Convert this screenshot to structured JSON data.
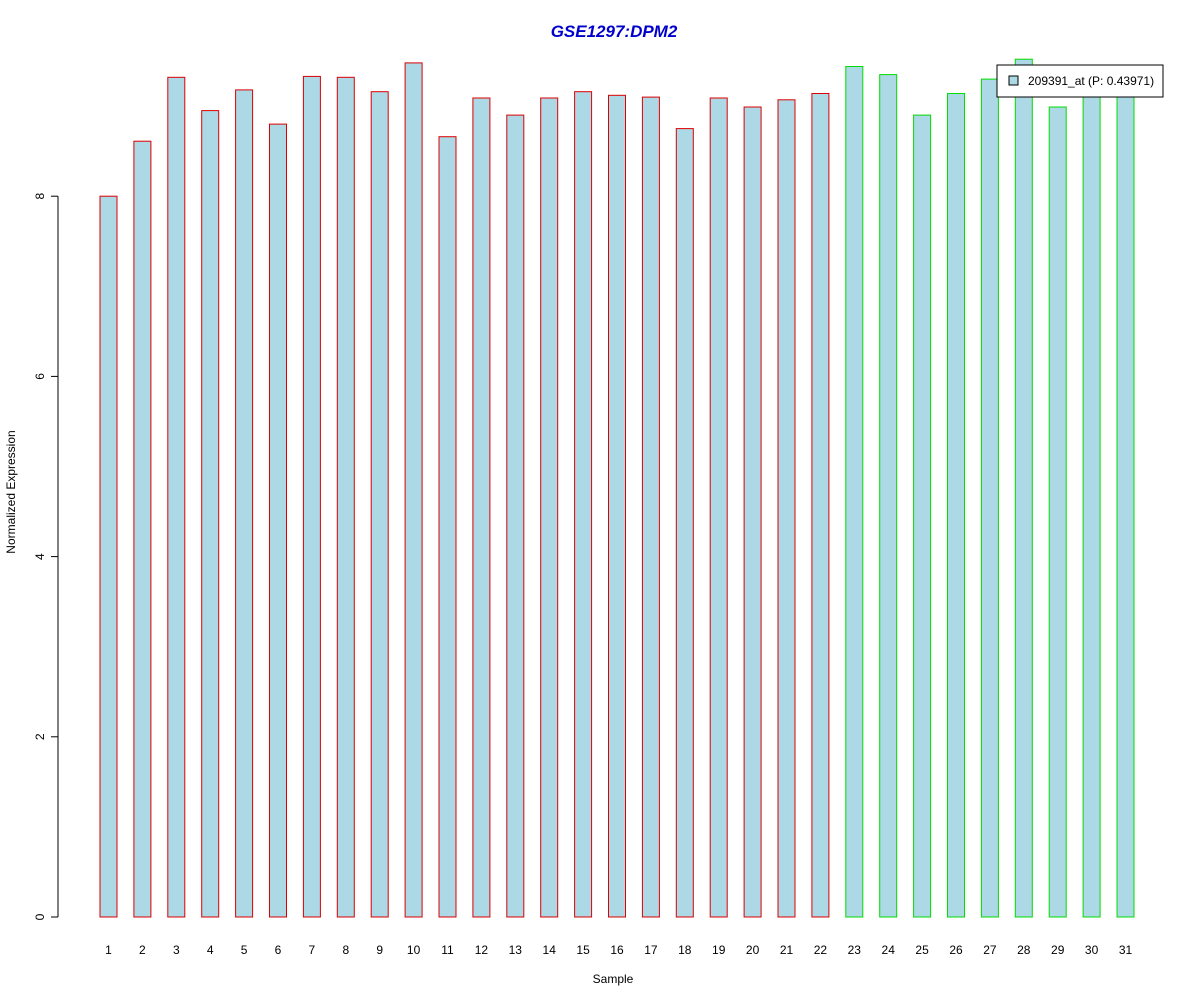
{
  "chart_data": {
    "type": "bar",
    "title": "GSE1297:DPM2",
    "xlabel": "Sample",
    "ylabel": "Normalized Expression",
    "ylim": [
      0,
      9.5
    ],
    "yticks": [
      0,
      2,
      4,
      6,
      8
    ],
    "grid": false,
    "legend_position": "top-right",
    "fill_color": "#add8e6",
    "title_color": "#0000cc",
    "categories": [
      "1",
      "2",
      "3",
      "4",
      "5",
      "6",
      "7",
      "8",
      "9",
      "10",
      "11",
      "12",
      "13",
      "14",
      "15",
      "16",
      "17",
      "18",
      "19",
      "20",
      "21",
      "22",
      "23",
      "24",
      "25",
      "26",
      "27",
      "28",
      "29",
      "30",
      "31"
    ],
    "series": [
      {
        "name": "209391_at (P: 0.43971)",
        "values": [
          8.0,
          8.61,
          9.32,
          8.95,
          9.18,
          8.8,
          9.33,
          9.32,
          9.16,
          9.48,
          8.66,
          9.09,
          8.9,
          9.09,
          9.16,
          9.12,
          9.1,
          8.75,
          9.09,
          8.99,
          9.07,
          9.14,
          9.44,
          9.35,
          8.9,
          9.14,
          9.3,
          9.52,
          8.99,
          9.12,
          9.12
        ],
        "group_colors": [
          "#dd0000",
          "#dd0000",
          "#dd0000",
          "#dd0000",
          "#dd0000",
          "#dd0000",
          "#dd0000",
          "#dd0000",
          "#dd0000",
          "#dd0000",
          "#dd0000",
          "#dd0000",
          "#dd0000",
          "#dd0000",
          "#dd0000",
          "#dd0000",
          "#dd0000",
          "#dd0000",
          "#dd0000",
          "#dd0000",
          "#dd0000",
          "#dd0000",
          "#00dd00",
          "#00dd00",
          "#00dd00",
          "#00dd00",
          "#00dd00",
          "#00dd00",
          "#00dd00",
          "#00dd00",
          "#00dd00"
        ]
      }
    ]
  }
}
